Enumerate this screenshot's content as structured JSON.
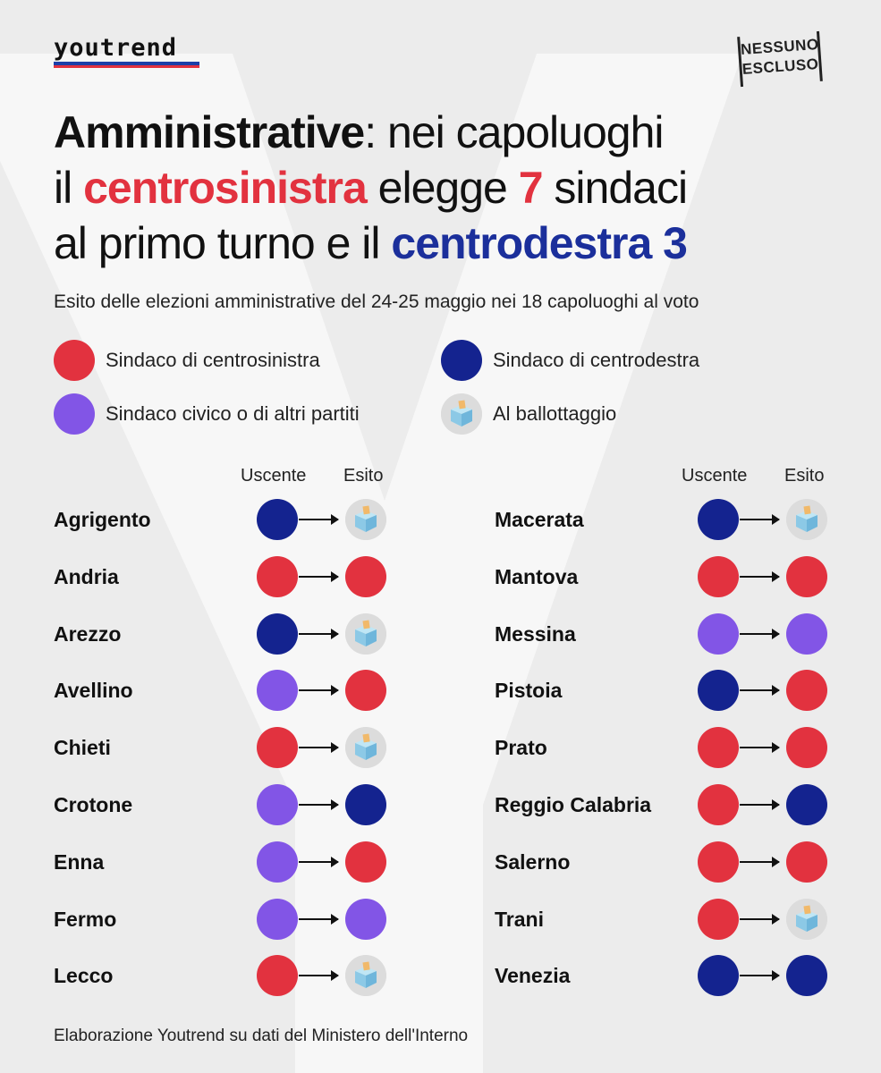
{
  "brand": {
    "logo_text": "youtrend",
    "badge_line1": "NESSUNO",
    "badge_line2": "ESCLUSO"
  },
  "title": {
    "part1": "Amministrative",
    "part2": ": nei capoluoghi",
    "part3": "il ",
    "part4": "centrosinistra",
    "part5": " elegge ",
    "part6": "7",
    "part7": " sindaci",
    "part8": "al primo turno e il ",
    "part9": "centrodestra 3"
  },
  "subtitle": "Esito delle elezioni amministrative del 24-25 maggio nei 18 capoluoghi al voto",
  "legend": [
    {
      "label": "Sindaco di centrosinistra",
      "type": "red"
    },
    {
      "label": "Sindaco di centrodestra",
      "type": "blue"
    },
    {
      "label": "Sindaco civico o di altri partiti",
      "type": "purple"
    },
    {
      "label": "Al ballottaggio",
      "type": "ballot"
    }
  ],
  "columns": {
    "outgoing": "Uscente",
    "result": "Esito"
  },
  "colors": {
    "red": "#e2323f",
    "blue": "#14238f",
    "purple": "#8255e6",
    "accent_blue_text": "#1b2f9b"
  },
  "cities_left": [
    {
      "name": "Agrigento",
      "outgoing": "blue",
      "result": "ballot"
    },
    {
      "name": "Andria",
      "outgoing": "red",
      "result": "red"
    },
    {
      "name": "Arezzo",
      "outgoing": "blue",
      "result": "ballot"
    },
    {
      "name": "Avellino",
      "outgoing": "purple",
      "result": "red"
    },
    {
      "name": "Chieti",
      "outgoing": "red",
      "result": "ballot"
    },
    {
      "name": "Crotone",
      "outgoing": "purple",
      "result": "blue"
    },
    {
      "name": "Enna",
      "outgoing": "purple",
      "result": "red"
    },
    {
      "name": "Fermo",
      "outgoing": "purple",
      "result": "purple"
    },
    {
      "name": "Lecco",
      "outgoing": "red",
      "result": "ballot"
    }
  ],
  "cities_right": [
    {
      "name": "Macerata",
      "outgoing": "blue",
      "result": "ballot"
    },
    {
      "name": "Mantova",
      "outgoing": "red",
      "result": "red"
    },
    {
      "name": "Messina",
      "outgoing": "purple",
      "result": "purple"
    },
    {
      "name": "Pistoia",
      "outgoing": "blue",
      "result": "red"
    },
    {
      "name": "Prato",
      "outgoing": "red",
      "result": "red"
    },
    {
      "name": "Reggio Calabria",
      "outgoing": "red",
      "result": "blue"
    },
    {
      "name": "Salerno",
      "outgoing": "red",
      "result": "red"
    },
    {
      "name": "Trani",
      "outgoing": "red",
      "result": "ballot"
    },
    {
      "name": "Venezia",
      "outgoing": "blue",
      "result": "blue"
    }
  ],
  "footer": "Elaborazione Youtrend su dati del Ministero dell'Interno"
}
